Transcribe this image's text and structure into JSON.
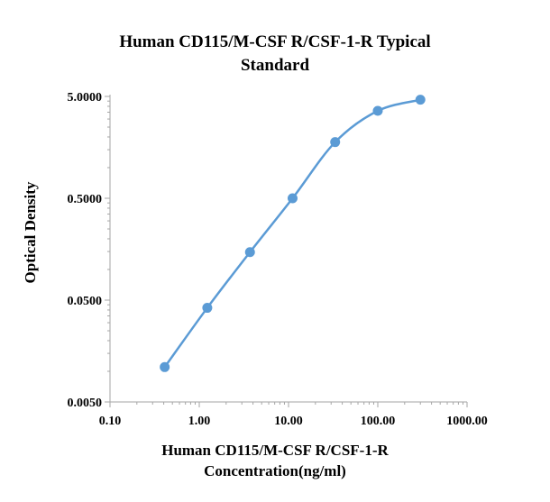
{
  "chart_data": {
    "type": "scatter",
    "title_lines": [
      "Human CD115/M-CSF R/CSF-1-R Typical",
      "Standard"
    ],
    "xlabel_lines": [
      "Human CD115/M-CSF R/CSF-1-R",
      "Concentration(ng/ml)"
    ],
    "ylabel": "Optical Density",
    "x_scale": "log",
    "y_scale": "log",
    "xlim": [
      0.1,
      1000
    ],
    "ylim": [
      0.005,
      5
    ],
    "x_ticks": [
      "0.10",
      "1.00",
      "10.00",
      "100.00",
      "1000.00"
    ],
    "y_ticks": [
      "0.0050",
      "0.0500",
      "0.5000",
      "5.0000"
    ],
    "x_tick_values": [
      0.1,
      1,
      10,
      100,
      1000
    ],
    "y_tick_values": [
      0.005,
      0.05,
      0.5,
      5
    ],
    "grid": false,
    "series": [
      {
        "x": [
          0.41,
          1.23,
          3.7,
          11.1,
          33.3,
          100,
          300
        ],
        "y": [
          0.011,
          0.042,
          0.148,
          0.5,
          1.78,
          3.61,
          4.64
        ],
        "line": "smooth",
        "color": "#5b9bd5"
      }
    ]
  }
}
